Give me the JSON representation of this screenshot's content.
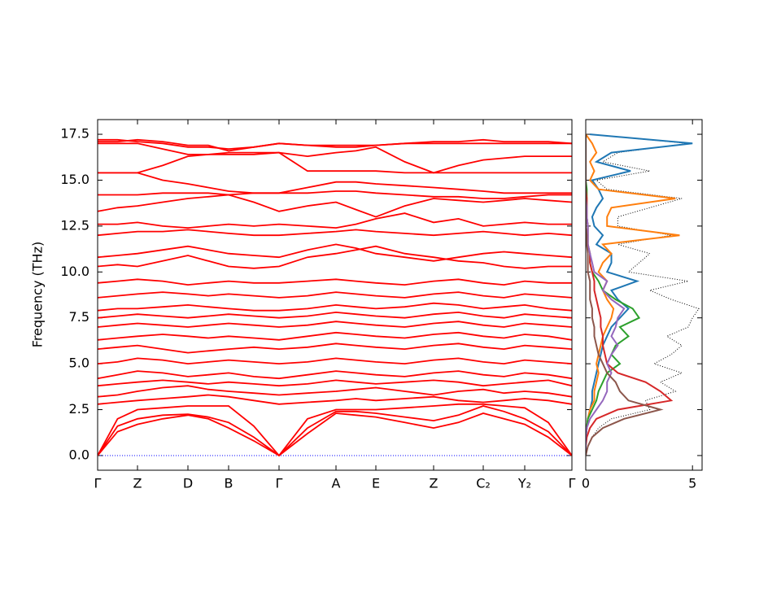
{
  "chart_data": [
    {
      "type": "line",
      "ylabel": "Frequency (THz)",
      "color": "#ff0000",
      "hline": {
        "value": 0,
        "color": "#0000ff"
      },
      "xlim": [
        0,
        5.83
      ],
      "xticks": [
        {
          "value": 0,
          "label": "Γ"
        },
        {
          "value": 0.49,
          "label": "Z"
        },
        {
          "value": 1.11,
          "label": "D"
        },
        {
          "value": 1.61,
          "label": "B"
        },
        {
          "value": 2.23,
          "label": "Γ"
        },
        {
          "value": 2.93,
          "label": "A"
        },
        {
          "value": 3.42,
          "label": "E"
        },
        {
          "value": 4.13,
          "label": "Z"
        },
        {
          "value": 4.74,
          "label": "C₂"
        },
        {
          "value": 5.25,
          "label": "Y₂"
        },
        {
          "value": 5.83,
          "label": "Γ"
        }
      ],
      "ylim": [
        -0.8,
        18.3
      ],
      "yticks": [
        {
          "value": 0,
          "label": "0.0"
        },
        2.5,
        {
          "value": 5,
          "label": "5.0"
        },
        7.5,
        {
          "value": 10,
          "label": "10.0"
        },
        12.5,
        {
          "value": 15,
          "label": "15.0"
        },
        17.5
      ],
      "x": [
        0,
        0.245,
        0.49,
        0.8,
        1.11,
        1.36,
        1.61,
        1.92,
        2.23,
        2.58,
        2.93,
        3.175,
        3.42,
        3.775,
        4.13,
        4.435,
        4.74,
        4.995,
        5.25,
        5.54,
        5.83
      ],
      "series": [
        {
          "values": [
            0,
            1.3,
            1.7,
            2.0,
            2.2,
            2.0,
            1.5,
            0.8,
            0,
            1.2,
            2.3,
            2.2,
            2.1,
            1.8,
            1.5,
            1.8,
            2.3,
            2.0,
            1.7,
            1.0,
            0
          ]
        },
        {
          "values": [
            0,
            1.6,
            2.0,
            2.2,
            2.25,
            2.1,
            1.8,
            1.0,
            0,
            1.5,
            2.4,
            2.4,
            2.3,
            2.1,
            1.9,
            2.2,
            2.7,
            2.4,
            2.0,
            1.3,
            0
          ]
        },
        {
          "values": [
            0,
            2.0,
            2.5,
            2.6,
            2.7,
            2.7,
            2.7,
            1.6,
            0,
            2.0,
            2.5,
            2.5,
            2.5,
            2.6,
            2.7,
            2.8,
            2.8,
            2.7,
            2.6,
            1.8,
            0
          ]
        },
        {
          "values": [
            2.8,
            2.9,
            3.0,
            3.1,
            3.2,
            3.3,
            3.2,
            3.0,
            2.8,
            2.9,
            3.0,
            3.1,
            3.0,
            3.1,
            3.2,
            3.0,
            2.9,
            3.0,
            3.1,
            3.0,
            2.8
          ]
        },
        {
          "values": [
            3.2,
            3.3,
            3.5,
            3.7,
            3.8,
            3.6,
            3.5,
            3.4,
            3.3,
            3.4,
            3.5,
            3.6,
            3.7,
            3.5,
            3.3,
            3.5,
            3.6,
            3.4,
            3.5,
            3.4,
            3.2
          ]
        },
        {
          "values": [
            3.8,
            3.9,
            4.0,
            4.1,
            4.0,
            3.9,
            4.0,
            3.9,
            3.8,
            3.9,
            4.1,
            4.0,
            3.9,
            4.0,
            4.1,
            4.0,
            3.8,
            3.9,
            4.0,
            4.1,
            3.8
          ]
        },
        {
          "values": [
            4.2,
            4.4,
            4.6,
            4.5,
            4.3,
            4.4,
            4.5,
            4.3,
            4.2,
            4.4,
            4.6,
            4.5,
            4.4,
            4.3,
            4.5,
            4.6,
            4.4,
            4.3,
            4.5,
            4.4,
            4.2
          ]
        },
        {
          "values": [
            5.0,
            5.1,
            5.3,
            5.2,
            5.0,
            5.1,
            5.2,
            5.1,
            5.0,
            5.1,
            5.3,
            5.2,
            5.1,
            5.0,
            5.2,
            5.3,
            5.1,
            5.0,
            5.2,
            5.1,
            5.0
          ]
        },
        {
          "values": [
            5.8,
            5.9,
            6.0,
            5.8,
            5.6,
            5.7,
            5.8,
            5.9,
            5.8,
            5.9,
            6.1,
            6.0,
            5.9,
            5.8,
            6.0,
            6.1,
            5.9,
            5.8,
            6.0,
            5.9,
            5.8
          ]
        },
        {
          "values": [
            6.3,
            6.4,
            6.5,
            6.6,
            6.5,
            6.4,
            6.5,
            6.4,
            6.3,
            6.5,
            6.7,
            6.6,
            6.5,
            6.4,
            6.6,
            6.7,
            6.5,
            6.4,
            6.6,
            6.5,
            6.3
          ]
        },
        {
          "values": [
            7.0,
            7.1,
            7.2,
            7.1,
            7.0,
            7.1,
            7.2,
            7.1,
            7.0,
            7.1,
            7.3,
            7.2,
            7.1,
            7.0,
            7.2,
            7.3,
            7.1,
            7.0,
            7.2,
            7.1,
            7.0
          ]
        },
        {
          "values": [
            7.5,
            7.6,
            7.7,
            7.6,
            7.5,
            7.6,
            7.7,
            7.6,
            7.5,
            7.6,
            7.8,
            7.7,
            7.6,
            7.5,
            7.7,
            7.8,
            7.6,
            7.5,
            7.7,
            7.6,
            7.5
          ]
        },
        {
          "values": [
            7.9,
            8.0,
            8.0,
            8.1,
            8.2,
            8.1,
            8.0,
            7.9,
            7.9,
            8.0,
            8.2,
            8.1,
            8.0,
            8.1,
            8.3,
            8.2,
            8.0,
            8.1,
            8.2,
            8.0,
            7.9
          ]
        },
        {
          "values": [
            8.6,
            8.7,
            8.8,
            8.9,
            8.8,
            8.7,
            8.8,
            8.7,
            8.6,
            8.7,
            8.9,
            8.8,
            8.7,
            8.6,
            8.8,
            8.9,
            8.7,
            8.6,
            8.8,
            8.7,
            8.6
          ]
        },
        {
          "values": [
            9.4,
            9.5,
            9.6,
            9.5,
            9.3,
            9.4,
            9.5,
            9.4,
            9.4,
            9.5,
            9.6,
            9.5,
            9.4,
            9.3,
            9.5,
            9.6,
            9.4,
            9.3,
            9.5,
            9.4,
            9.4
          ]
        },
        {
          "values": [
            10.3,
            10.4,
            10.3,
            10.6,
            10.9,
            10.6,
            10.3,
            10.2,
            10.3,
            10.8,
            11.0,
            11.2,
            11.4,
            11.0,
            10.8,
            10.6,
            10.5,
            10.3,
            10.2,
            10.3,
            10.3
          ]
        },
        {
          "values": [
            10.8,
            10.9,
            11.0,
            11.2,
            11.4,
            11.2,
            11.0,
            10.9,
            10.8,
            11.2,
            11.5,
            11.3,
            11.0,
            10.8,
            10.6,
            10.8,
            11.0,
            11.1,
            11.0,
            10.9,
            10.8
          ]
        },
        {
          "values": [
            12.0,
            12.1,
            12.2,
            12.2,
            12.3,
            12.2,
            12.1,
            12.0,
            12.0,
            12.1,
            12.2,
            12.3,
            12.2,
            12.1,
            12.0,
            12.1,
            12.2,
            12.1,
            12.0,
            12.1,
            12.0
          ]
        },
        {
          "values": [
            12.6,
            12.6,
            12.7,
            12.5,
            12.4,
            12.5,
            12.6,
            12.5,
            12.6,
            12.5,
            12.4,
            12.6,
            12.9,
            13.2,
            12.7,
            12.9,
            12.5,
            12.6,
            12.7,
            12.6,
            12.6
          ]
        },
        {
          "values": [
            13.3,
            13.5,
            13.6,
            13.8,
            14.0,
            14.1,
            14.2,
            13.8,
            13.3,
            13.6,
            13.8,
            13.4,
            13.0,
            13.6,
            14.0,
            13.9,
            13.8,
            13.9,
            14.0,
            13.9,
            13.8
          ]
        },
        {
          "values": [
            14.2,
            14.2,
            14.2,
            14.3,
            14.3,
            14.3,
            14.2,
            14.3,
            14.3,
            14.3,
            14.4,
            14.4,
            14.3,
            14.2,
            14.1,
            14.1,
            14.0,
            14.0,
            14.1,
            14.2,
            14.2
          ]
        },
        {
          "values": [
            15.4,
            15.4,
            15.4,
            15.0,
            14.8,
            14.6,
            14.4,
            14.3,
            14.3,
            14.6,
            14.9,
            14.9,
            14.8,
            14.7,
            14.6,
            14.5,
            14.4,
            14.3,
            14.3,
            14.3,
            14.3
          ]
        },
        {
          "values": [
            15.4,
            15.4,
            15.4,
            15.8,
            16.3,
            16.4,
            16.4,
            16.4,
            16.5,
            15.5,
            15.5,
            15.5,
            15.5,
            15.4,
            15.4,
            15.4,
            15.4,
            15.4,
            15.4,
            15.4,
            15.4
          ]
        },
        {
          "values": [
            17.0,
            17.0,
            17.0,
            16.7,
            16.4,
            16.4,
            16.5,
            16.5,
            16.5,
            16.3,
            16.5,
            16.6,
            16.8,
            16.0,
            15.4,
            15.8,
            16.1,
            16.2,
            16.3,
            16.3,
            16.3
          ]
        },
        {
          "values": [
            17.2,
            17.2,
            17.1,
            17.0,
            16.8,
            16.8,
            16.7,
            16.8,
            17.0,
            16.9,
            16.8,
            16.8,
            16.9,
            17.0,
            17.0,
            17.0,
            17.0,
            17.0,
            17.0,
            17.0,
            17.0
          ]
        },
        {
          "values": [
            17.1,
            17.1,
            17.2,
            17.1,
            16.9,
            16.9,
            16.6,
            16.8,
            17.0,
            16.9,
            16.9,
            16.9,
            16.9,
            17.0,
            17.1,
            17.1,
            17.2,
            17.1,
            17.1,
            17.1,
            17.0
          ]
        }
      ]
    },
    {
      "type": "dos",
      "xlim": [
        0,
        5.45
      ],
      "xticks": [
        0,
        5
      ],
      "ylim": [
        -0.8,
        18.3
      ],
      "yticks": [
        0,
        2.5,
        5,
        7.5,
        10,
        12.5,
        15,
        17.5
      ],
      "y": [
        0,
        0.5,
        1,
        1.5,
        2,
        2.5,
        3,
        3.5,
        4,
        4.5,
        5,
        5.5,
        6,
        6.5,
        7,
        7.5,
        8,
        8.5,
        9,
        9.5,
        10,
        10.5,
        11,
        11.5,
        12,
        12.5,
        13,
        13.5,
        14,
        14.5,
        15,
        15.5,
        16,
        16.5,
        17,
        17.5
      ],
      "series": [
        {
          "color": "#000000",
          "style": "dotted",
          "values": [
            0,
            0.1,
            0.3,
            0.6,
            1.2,
            3.0,
            2.8,
            4.2,
            3.5,
            4.5,
            3.2,
            4.0,
            4.5,
            3.8,
            4.8,
            5.0,
            5.3,
            4.0,
            3.0,
            4.8,
            2.0,
            2.5,
            3.0,
            1.5,
            4.0,
            1.5,
            1.5,
            3.0,
            4.5,
            1.0,
            0.5,
            3.0,
            0.8,
            1.5,
            4.8,
            0.2
          ]
        },
        {
          "color": "#1f77b4",
          "style": "solid",
          "values": [
            0,
            0,
            0,
            0.05,
            0.1,
            0.2,
            0.3,
            0.3,
            0.4,
            0.5,
            0.6,
            0.7,
            0.8,
            1.0,
            1.2,
            1.6,
            2.0,
            1.5,
            1.2,
            2.4,
            1.0,
            1.2,
            1.2,
            0.5,
            0.8,
            0.4,
            0.3,
            0.5,
            0.8,
            0.6,
            0.3,
            2.1,
            0.5,
            1.2,
            5.0,
            0.2
          ]
        },
        {
          "color": "#ff7f0e",
          "style": "solid",
          "values": [
            0,
            0,
            0,
            0.05,
            0.1,
            0.2,
            0.4,
            0.4,
            0.5,
            0.6,
            0.5,
            0.6,
            0.7,
            0.8,
            1.0,
            1.2,
            1.3,
            1.0,
            0.8,
            1.0,
            0.6,
            0.8,
            1.2,
            0.8,
            4.4,
            1.0,
            1.0,
            1.2,
            4.2,
            0.6,
            0.2,
            0.4,
            0.2,
            0.5,
            0.3,
            0
          ]
        },
        {
          "color": "#2ca02c",
          "style": "solid",
          "values": [
            0,
            0,
            0,
            0.05,
            0.1,
            0.3,
            0.5,
            0.6,
            0.8,
            1.0,
            1.6,
            1.2,
            1.4,
            2.0,
            1.6,
            2.5,
            2.2,
            1.4,
            0.8,
            0.6,
            0.3,
            0.2,
            0.2,
            0.1,
            0.1,
            0.1,
            0.05,
            0.05,
            0.05,
            0.05,
            0,
            0,
            0,
            0,
            0,
            0
          ]
        },
        {
          "color": "#d62728",
          "style": "solid",
          "values": [
            0,
            0,
            0.05,
            0.2,
            0.5,
            1.5,
            4.0,
            3.5,
            2.8,
            1.5,
            1.0,
            0.9,
            0.8,
            0.8,
            0.7,
            0.7,
            0.6,
            0.5,
            0.4,
            0.4,
            0.3,
            0.2,
            0.2,
            0.1,
            0.1,
            0.1,
            0.05,
            0.05,
            0.05,
            0,
            0,
            0,
            0,
            0,
            0,
            0
          ]
        },
        {
          "color": "#9467bd",
          "style": "solid",
          "values": [
            0,
            0,
            0,
            0.05,
            0.2,
            0.5,
            0.8,
            1.0,
            1.0,
            1.2,
            1.0,
            1.2,
            1.5,
            1.2,
            1.4,
            1.5,
            1.8,
            1.2,
            0.8,
            1.0,
            0.4,
            0.3,
            0.2,
            0.1,
            0.1,
            0.1,
            0.05,
            0.05,
            0,
            0,
            0,
            0,
            0,
            0,
            0,
            0
          ]
        },
        {
          "color": "#8c564b",
          "style": "solid",
          "values": [
            0,
            0.1,
            0.3,
            0.8,
            1.8,
            3.5,
            2.0,
            1.6,
            1.4,
            1.0,
            0.8,
            0.6,
            0.5,
            0.4,
            0.4,
            0.3,
            0.3,
            0.2,
            0.2,
            0.2,
            0.1,
            0.1,
            0.1,
            0.05,
            0.05,
            0,
            0,
            0,
            0,
            0,
            0,
            0,
            0,
            0,
            0,
            0
          ]
        }
      ]
    }
  ]
}
